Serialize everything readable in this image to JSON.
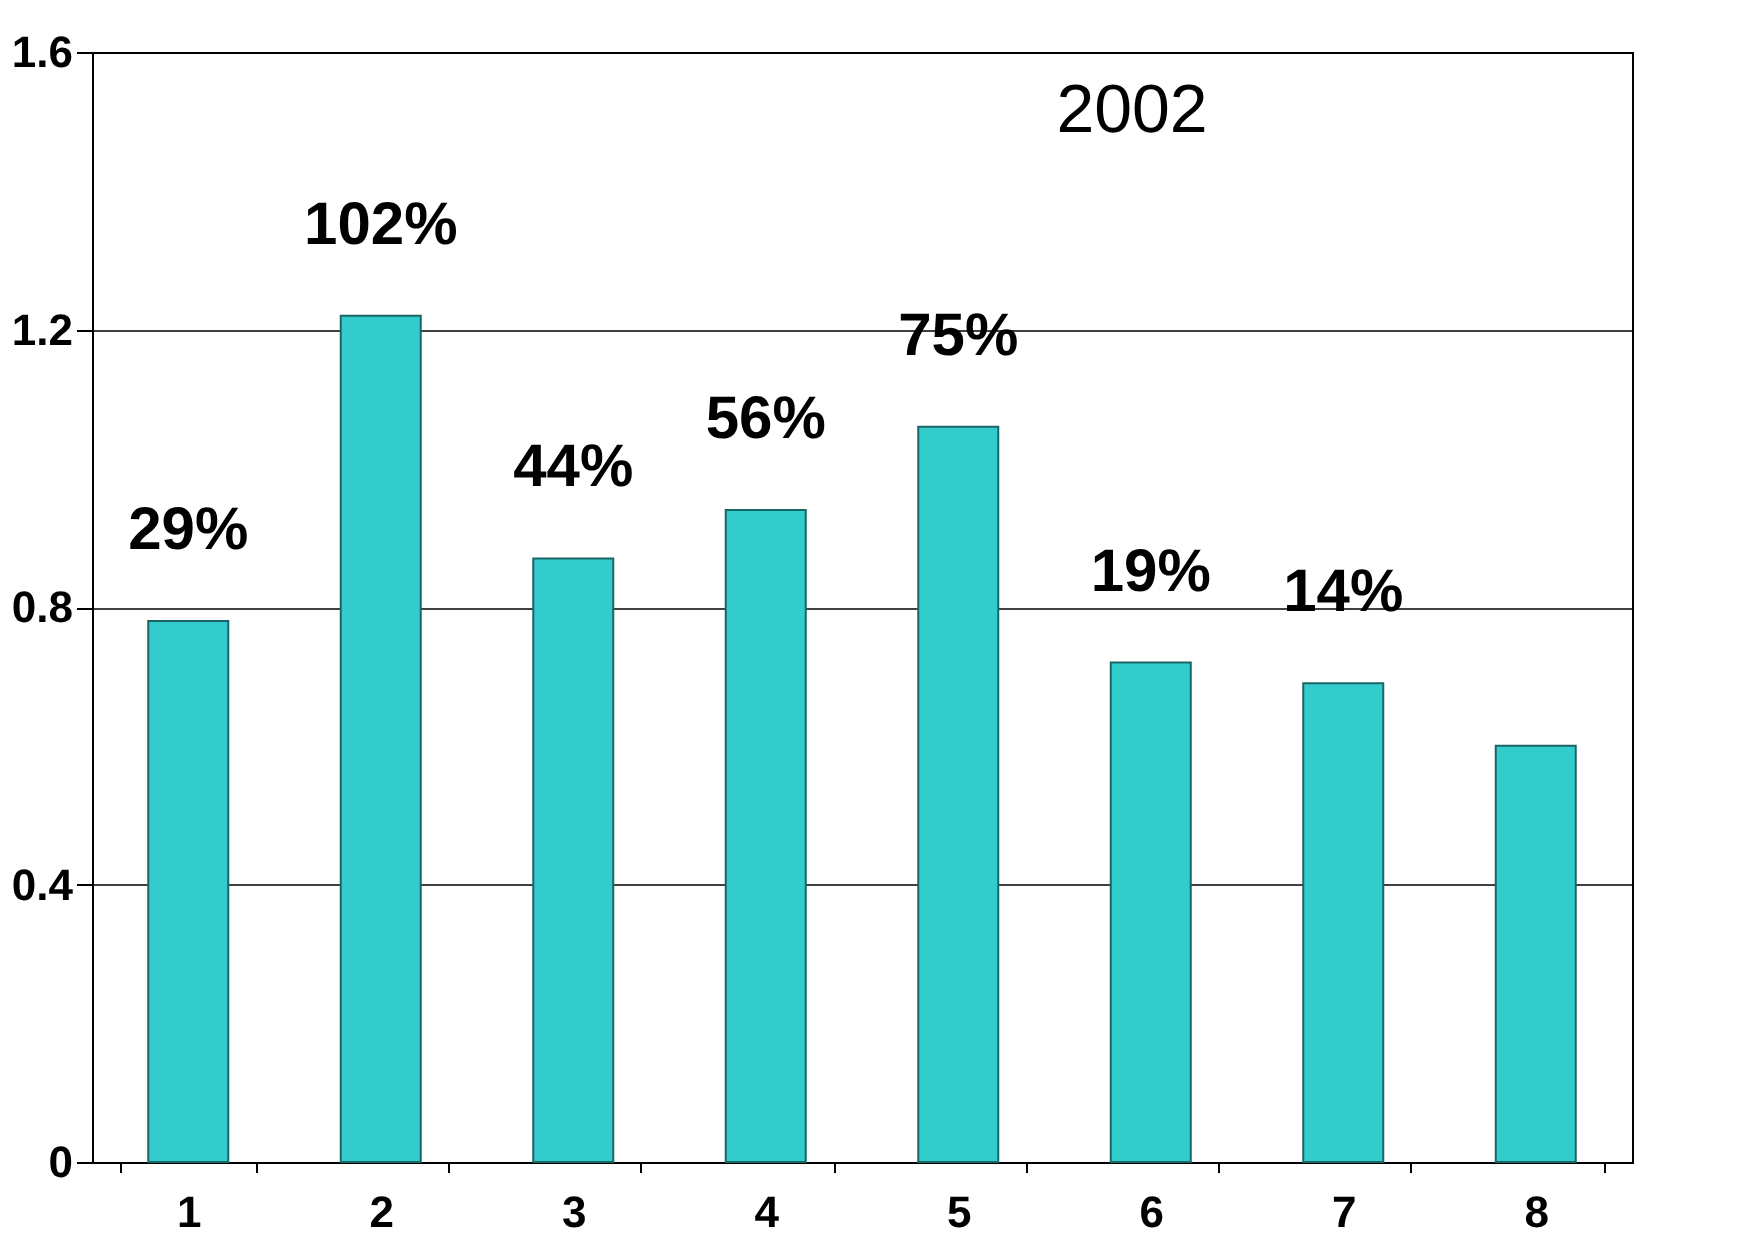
{
  "chart_data": {
    "type": "bar",
    "annotations": [
      "2002",
      {
        "text": "29%",
        "x": "1",
        "y": 0.78
      },
      {
        "text": "102%",
        "x": "2",
        "y": 1.22
      },
      {
        "text": "44%",
        "x": "3",
        "y": 0.87
      },
      {
        "text": "56%",
        "x": "4",
        "y": 0.94
      },
      {
        "text": "75%",
        "x": "5",
        "y": 1.06
      },
      {
        "text": "19%",
        "x": "6",
        "y": 0.72
      },
      {
        "text": "14%",
        "x": "7",
        "y": 0.69
      }
    ],
    "categories": [
      "1",
      "2",
      "3",
      "4",
      "5",
      "6",
      "7",
      "8"
    ],
    "values": [
      0.78,
      1.22,
      0.87,
      0.94,
      1.06,
      0.72,
      0.69,
      0.6
    ],
    "color": "#33cccc",
    "ylim": [
      0,
      1.6
    ],
    "yticks": [
      0,
      0.4,
      0.8,
      1.2,
      1.6
    ],
    "grid": "y"
  }
}
